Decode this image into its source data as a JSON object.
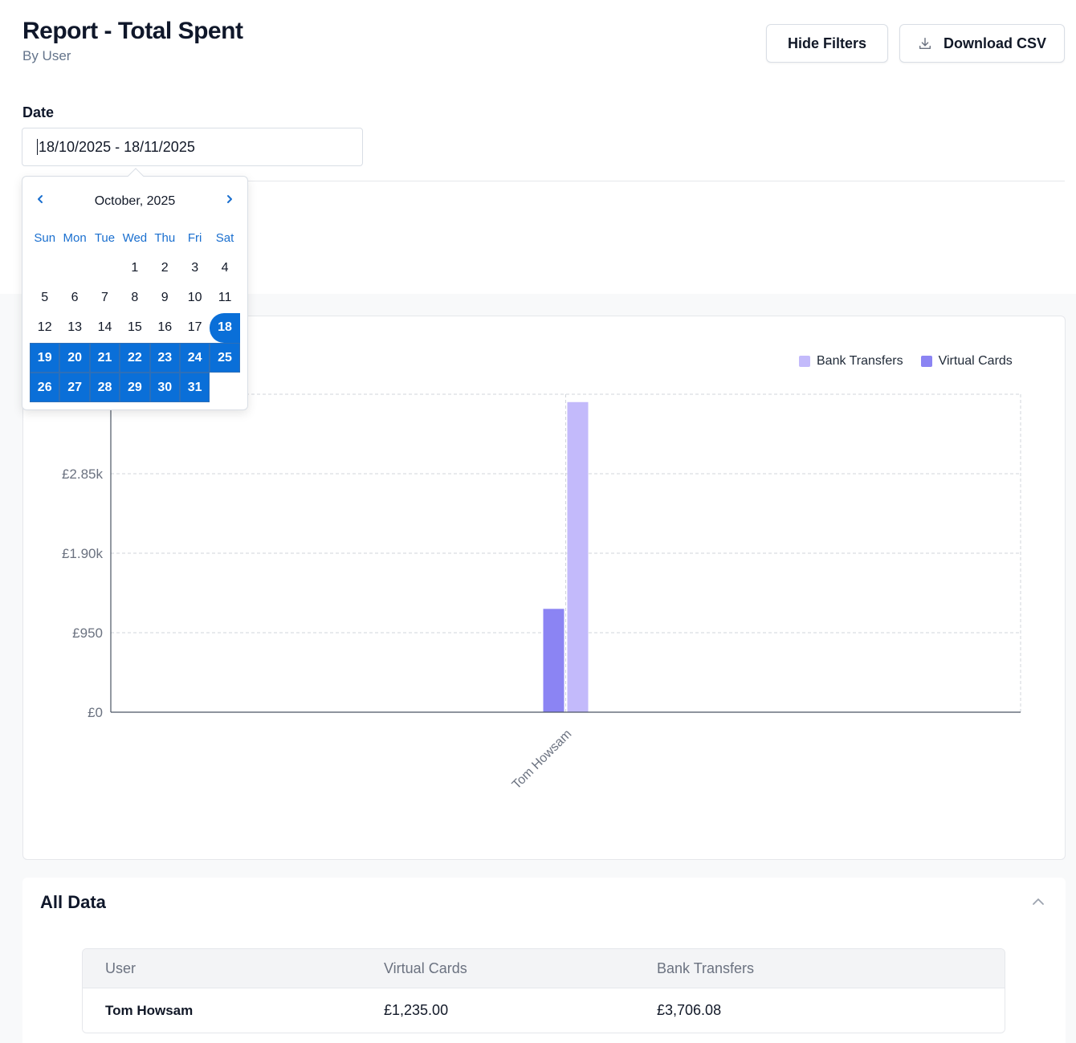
{
  "header": {
    "title": "Report - Total Spent",
    "subtitle": "By User",
    "hide_filters_label": "Hide Filters",
    "download_csv_label": "Download CSV"
  },
  "filters": {
    "date_label": "Date",
    "date_value": "18/10/2025 - 18/11/2025"
  },
  "calendar": {
    "month_label": "October, 2025",
    "weekdays": [
      "Sun",
      "Mon",
      "Tue",
      "Wed",
      "Thu",
      "Fri",
      "Sat"
    ],
    "leading_blanks": 3,
    "days": [
      "1",
      "2",
      "3",
      "4",
      "5",
      "6",
      "7",
      "8",
      "9",
      "10",
      "11",
      "12",
      "13",
      "14",
      "15",
      "16",
      "17",
      "18",
      "19",
      "20",
      "21",
      "22",
      "23",
      "24",
      "25",
      "26",
      "27",
      "28",
      "29",
      "30",
      "31"
    ],
    "range_start": 18,
    "range_end": 31,
    "accent": "#0a6fd8"
  },
  "chart_data": {
    "type": "bar",
    "categories": [
      "Tom Howsam"
    ],
    "series": [
      {
        "name": "Virtual Cards",
        "values": [
          1235.0
        ],
        "color": "#8b84f3"
      },
      {
        "name": "Bank Transfers",
        "values": [
          3706.08
        ],
        "color": "#c3bafb"
      }
    ],
    "ylim": [
      0,
      3800
    ],
    "yticks": [
      0,
      950,
      1900,
      2850,
      3800
    ],
    "ytick_labels": [
      "£0",
      "£950",
      "£1.90k",
      "£2.85k",
      ""
    ],
    "legend_position": "top-right",
    "legend_order": [
      "Bank Transfers",
      "Virtual Cards"
    ],
    "grid": true
  },
  "all_data": {
    "title": "All Data",
    "columns": [
      "User",
      "Virtual Cards",
      "Bank Transfers"
    ],
    "rows": [
      [
        "Tom Howsam",
        "£1,235.00",
        "£3,706.08"
      ]
    ]
  }
}
